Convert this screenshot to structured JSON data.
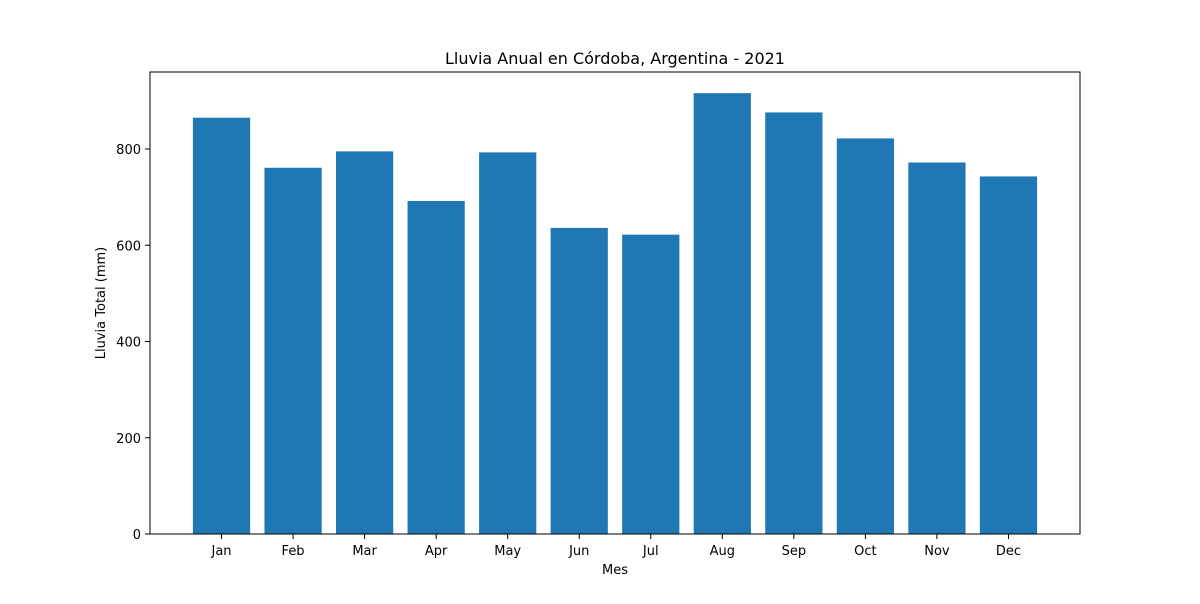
{
  "chart_data": {
    "type": "bar",
    "title": "Lluvia Anual en Córdoba, Argentina - 2021",
    "xlabel": "Mes",
    "ylabel": "Lluvia Total (mm)",
    "categories": [
      "Jan",
      "Feb",
      "Mar",
      "Apr",
      "May",
      "Jun",
      "Jul",
      "Aug",
      "Sep",
      "Oct",
      "Nov",
      "Dec"
    ],
    "values": [
      865,
      761,
      795,
      692,
      793,
      636,
      622,
      916,
      876,
      822,
      772,
      743
    ],
    "ylim": [
      0,
      960
    ],
    "yticks": [
      0,
      200,
      400,
      600,
      800
    ],
    "grid": false,
    "bar_color": "#1f77b4"
  }
}
